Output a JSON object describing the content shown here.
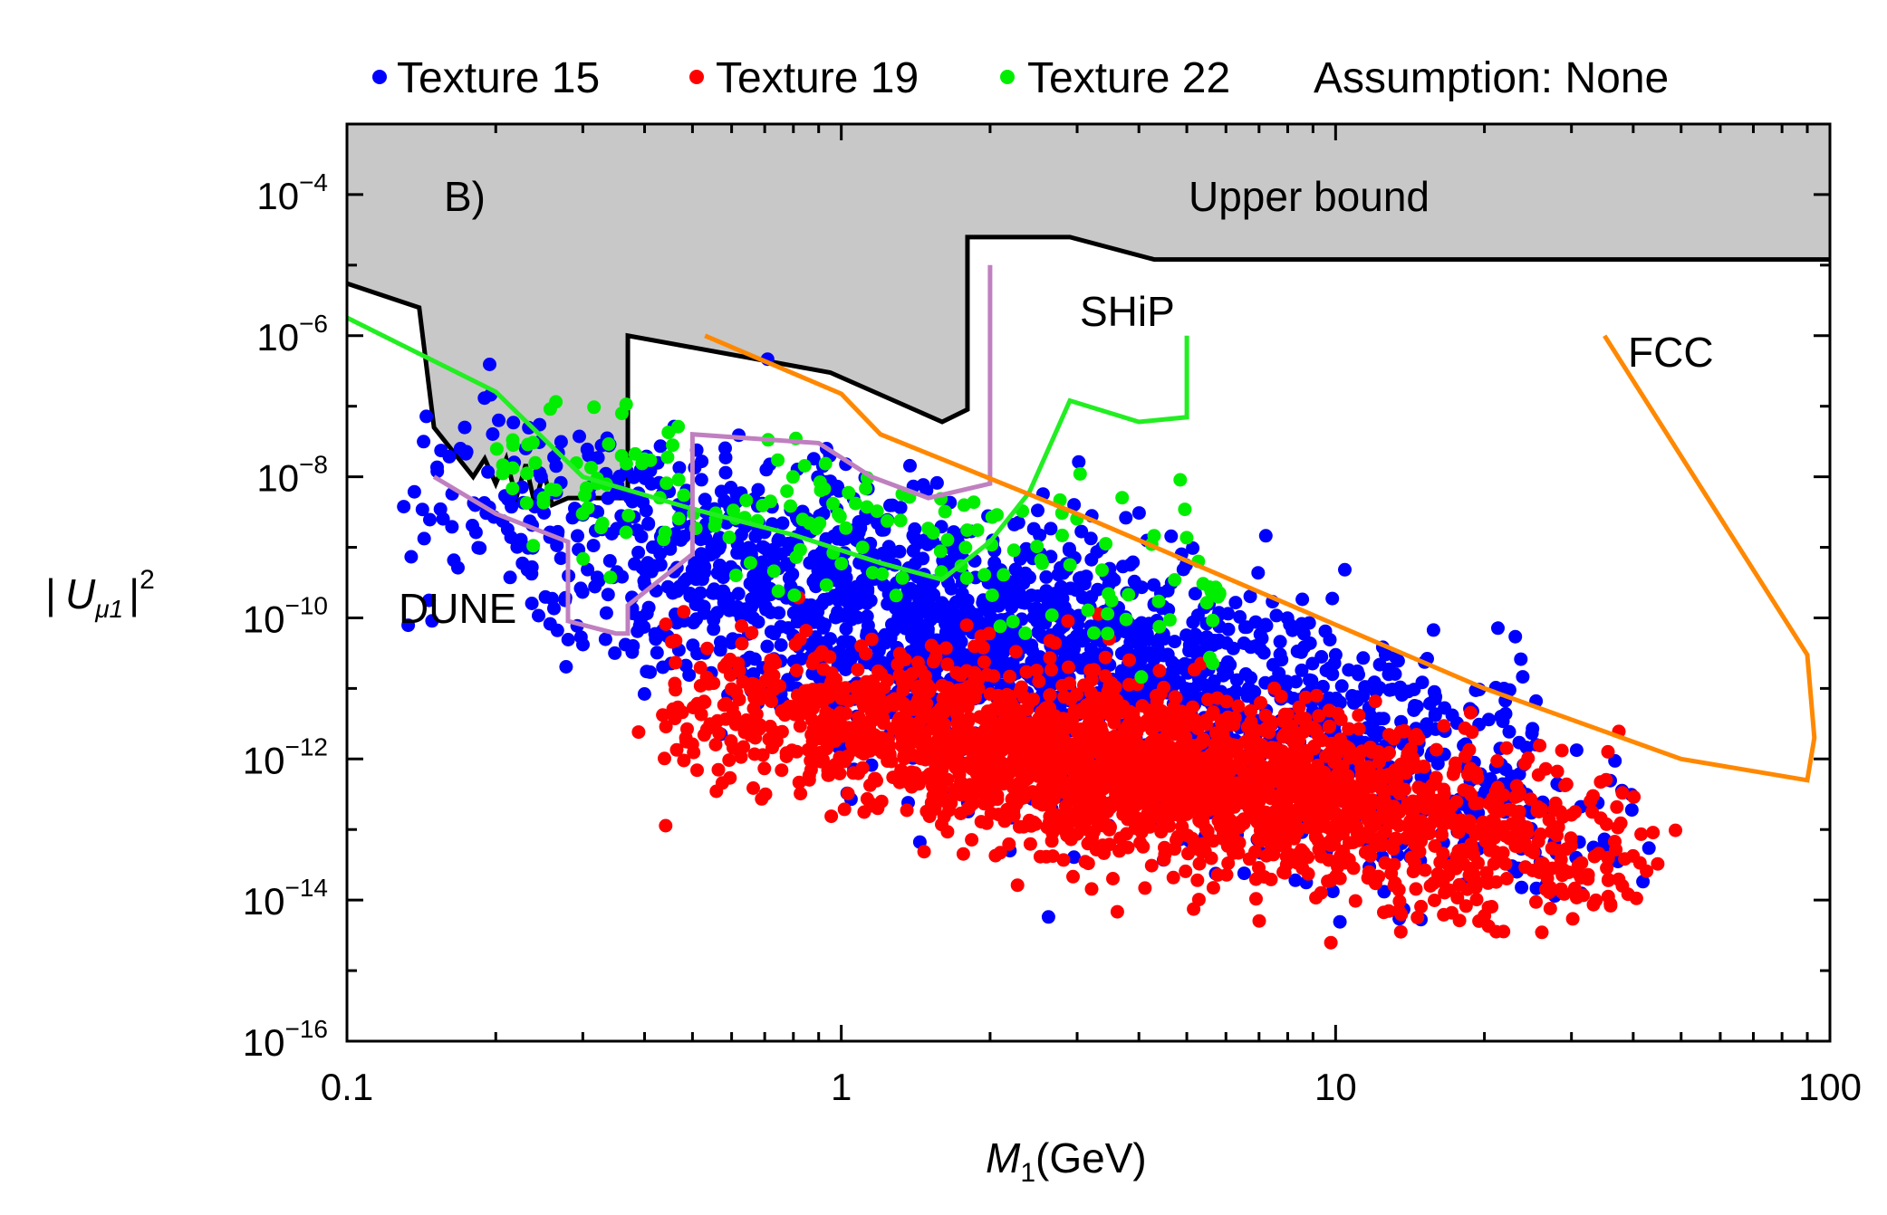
{
  "chart_data": {
    "type": "scatter",
    "title": "",
    "legend": [
      {
        "name": "Texture 15",
        "color": "#0000ff"
      },
      {
        "name": "Texture 19",
        "color": "#ff0000"
      },
      {
        "name": "Texture 22",
        "color": "#00ee00"
      }
    ],
    "legend_note": "Assumption: None",
    "xlabel_var": "M",
    "xlabel_sub": "1",
    "xlabel_unit": "(GeV)",
    "ylabel_var": "U",
    "ylabel_sub": "μ1",
    "ylabel_sup": "2",
    "xscale": "log",
    "yscale": "log",
    "xlim": [
      0.1,
      100
    ],
    "ylim": [
      1e-16,
      0.001
    ],
    "x_ticks": [
      {
        "value": 0.1,
        "label": "0.1"
      },
      {
        "value": 1,
        "label": "1"
      },
      {
        "value": 10,
        "label": "10"
      },
      {
        "value": 100,
        "label": "100"
      }
    ],
    "y_ticks": [
      {
        "value": 0.0001,
        "base": "10",
        "exp": "−4"
      },
      {
        "value": 1e-06,
        "base": "10",
        "exp": "−6"
      },
      {
        "value": 1e-08,
        "base": "10",
        "exp": "−8"
      },
      {
        "value": 1e-10,
        "base": "10",
        "exp": "−10"
      },
      {
        "value": 1e-12,
        "base": "10",
        "exp": "−12"
      },
      {
        "value": 1e-14,
        "base": "10",
        "exp": "−14"
      },
      {
        "value": 1e-16,
        "base": "10",
        "exp": "−16"
      }
    ],
    "annotations": {
      "panel": "B)",
      "upper": "Upper bound",
      "ship": "SHiP",
      "fcc": "FCC",
      "dune": "DUNE"
    },
    "excluded_region": {
      "name": "Upper bound",
      "fill": "#c8c8c8",
      "points": [
        [
          0.1,
          5.5e-06
        ],
        [
          0.14,
          2.5e-06
        ],
        [
          0.15,
          5e-08
        ],
        [
          0.18,
          1e-08
        ],
        [
          0.19,
          1.8e-08
        ],
        [
          0.2,
          8e-09
        ],
        [
          0.21,
          1.8e-08
        ],
        [
          0.22,
          5e-09
        ],
        [
          0.23,
          1.5e-08
        ],
        [
          0.24,
          4e-09
        ],
        [
          0.25,
          1.2e-08
        ],
        [
          0.26,
          4e-09
        ],
        [
          0.28,
          5e-09
        ],
        [
          0.37,
          5e-09
        ],
        [
          0.37,
          1e-06
        ],
        [
          0.95,
          3e-07
        ],
        [
          1.6,
          6e-08
        ],
        [
          1.8,
          9e-08
        ],
        [
          1.8,
          2.5e-05
        ],
        [
          2.9,
          2.5e-05
        ],
        [
          4.3,
          1.2e-05
        ],
        [
          100,
          1.2e-05
        ]
      ]
    },
    "curves": [
      {
        "name": "SHiP",
        "color": "#22ee22",
        "points": [
          [
            0.1,
            1.8e-06
          ],
          [
            0.2,
            1.6e-07
          ],
          [
            0.3,
            1e-08
          ],
          [
            0.5,
            3.5e-09
          ],
          [
            0.8,
            1.5e-09
          ],
          [
            1.2,
            6e-10
          ],
          [
            1.6,
            3.5e-10
          ],
          [
            2,
            1.2e-09
          ],
          [
            2.4,
            6e-09
          ],
          [
            2.9,
            1.2e-07
          ],
          [
            4,
            6e-08
          ],
          [
            5,
            7e-08
          ],
          [
            5,
            1e-06
          ]
        ]
      },
      {
        "name": "DUNE",
        "color": "#c080c0",
        "points": [
          [
            0.15,
            1e-08
          ],
          [
            0.2,
            3e-09
          ],
          [
            0.28,
            1.2e-09
          ],
          [
            0.28,
            9e-11
          ],
          [
            0.35,
            6e-11
          ],
          [
            0.37,
            6e-11
          ],
          [
            0.37,
            1.5e-10
          ],
          [
            0.5,
            8e-10
          ],
          [
            0.5,
            4e-08
          ],
          [
            0.9,
            3e-08
          ],
          [
            1.15,
            1e-08
          ],
          [
            1.5,
            5e-09
          ],
          [
            2,
            8e-09
          ],
          [
            2,
            1e-05
          ]
        ]
      },
      {
        "name": "FCC",
        "color": "#ff8800",
        "points": [
          [
            0.53,
            1e-06
          ],
          [
            1,
            1.5e-07
          ],
          [
            1.2,
            4e-08
          ],
          [
            3,
            3e-09
          ],
          [
            10,
            8e-11
          ],
          [
            20,
            1e-11
          ],
          [
            50,
            1e-12
          ],
          [
            90,
            5e-13
          ],
          [
            93,
            2e-12
          ],
          [
            90,
            3e-11
          ],
          [
            35,
            1e-06
          ]
        ]
      }
    ],
    "series": [
      {
        "name": "Texture 15",
        "color": "#0000ff",
        "n_points": 2200,
        "x_range": [
          0.12,
          45
        ],
        "y_center_at_x1": 1.5e-10,
        "slope_decades_per_decade": -1.9,
        "y_spread_decades": 0.9
      },
      {
        "name": "Texture 19",
        "color": "#ff0000",
        "n_points": 2400,
        "x_range": [
          0.37,
          50
        ],
        "y_center_at_x1": 3e-12,
        "slope_decades_per_decade": -1.1,
        "y_spread_decades": 0.6
      },
      {
        "name": "Texture 22",
        "color": "#00ee00",
        "n_points": 180,
        "x_range": [
          0.2,
          6
        ],
        "y_center_at_x1": 2e-09,
        "slope_decades_per_decade": -1.3,
        "y_spread_decades": 0.55
      }
    ]
  }
}
